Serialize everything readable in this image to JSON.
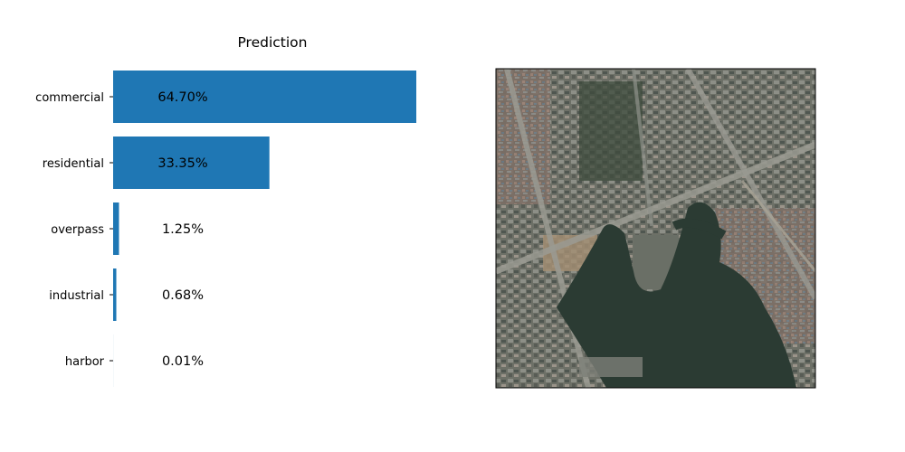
{
  "chart_data": {
    "type": "bar",
    "orientation": "horizontal",
    "title": "Prediction",
    "categories": [
      "commercial",
      "residential",
      "overpass",
      "industrial",
      "harbor"
    ],
    "values": [
      64.7,
      33.35,
      1.25,
      0.68,
      0.01
    ],
    "value_labels": [
      "64.70%",
      "33.35%",
      "1.25%",
      "0.68%",
      "0.01%"
    ],
    "unit": "%",
    "xlim": [
      0,
      64.7
    ],
    "bar_color": "#1f77b4",
    "grid": false,
    "x_axis_visible": false
  },
  "image_panel": {
    "content": "aerial-satellite-view",
    "colors": {
      "water": "#2b3b33",
      "urban": "#6f7268",
      "vegetation": "#3d4a3a",
      "road": "#9a9a92",
      "bare_soil": "#a48f73"
    }
  }
}
